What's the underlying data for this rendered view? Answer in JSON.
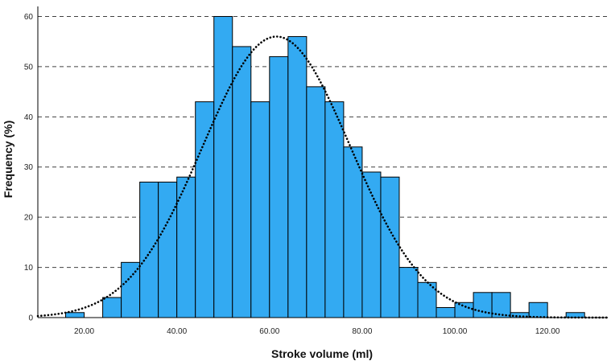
{
  "chart_data": {
    "type": "bar",
    "title": "",
    "xlabel": "Stroke volume (ml)",
    "ylabel": "Frequency (%)",
    "xlim": [
      10,
      133
    ],
    "ylim": [
      0,
      62
    ],
    "x_ticks": [
      20,
      40,
      60,
      80,
      100,
      120
    ],
    "x_tick_labels": [
      "20.00",
      "40.00",
      "60.00",
      "80.00",
      "100.00",
      "120.00"
    ],
    "y_ticks": [
      0,
      10,
      20,
      30,
      40,
      50,
      60
    ],
    "y_tick_labels": [
      "0",
      "10",
      "20",
      "30",
      "40",
      "50",
      "60"
    ],
    "grid": "horizontal dashed",
    "bin_width": 4,
    "bin_starts": [
      16,
      24,
      28,
      32,
      36,
      40,
      44,
      48,
      52,
      56,
      60,
      64,
      68,
      72,
      76,
      80,
      84,
      88,
      92,
      96,
      100,
      104,
      108,
      112,
      116,
      124
    ],
    "values": [
      1,
      4,
      11,
      27,
      27,
      28,
      43,
      60,
      54,
      43,
      52,
      56,
      46,
      43,
      34,
      29,
      28,
      10,
      7,
      2,
      3,
      5,
      5,
      1,
      3,
      1
    ],
    "normal_curve": {
      "mean": 61.5,
      "sd": 16,
      "peak": 56,
      "style": "dotted"
    },
    "colors": {
      "bar": "#33aaf2",
      "bar_edge": "#000000",
      "curve": "#000000",
      "grid": "#000000"
    }
  }
}
